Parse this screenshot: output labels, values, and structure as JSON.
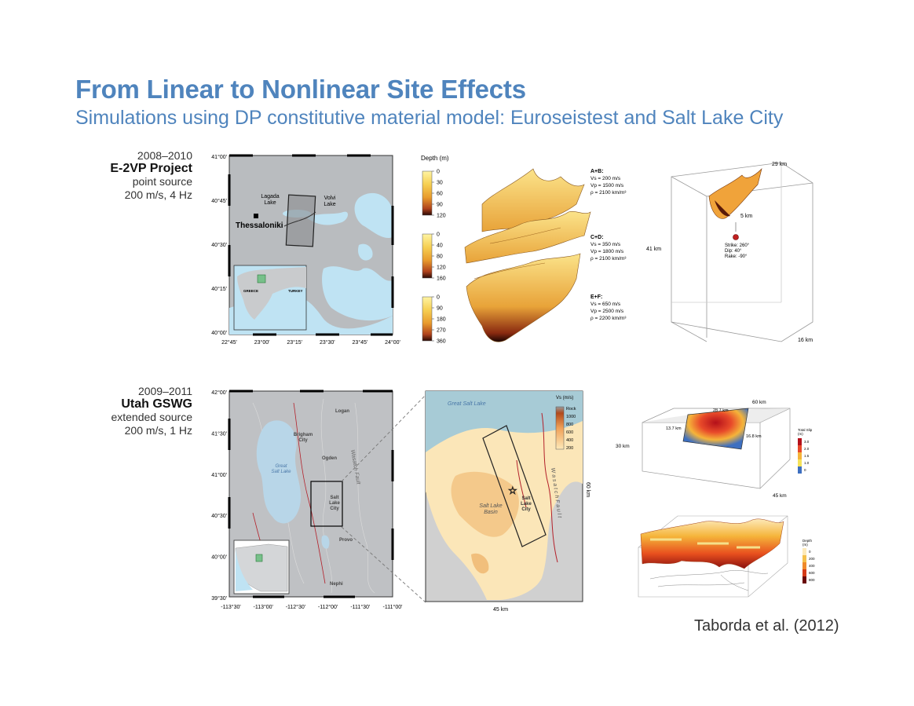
{
  "title": "From Linear to Nonlinear Site Effects",
  "subtitle": "Simulations using DP constitutive material model: Euroseistest and Salt Lake City",
  "rows": [
    {
      "years": "2008–2010",
      "project": "E-2VP Project",
      "source": "point source",
      "params": "200 m/s, 4 Hz"
    },
    {
      "years": "2009–2011",
      "project": "Utah GSWG",
      "source": "extended source",
      "params": "200 m/s, 1 Hz"
    }
  ],
  "greece_map": {
    "lat_ticks": [
      "41°00'",
      "40°45'",
      "40°30'",
      "40°15'",
      "40°00'"
    ],
    "lon_ticks": [
      "22°45'",
      "23°00'",
      "23°15'",
      "23°30'",
      "23°45'",
      "24°00'"
    ],
    "city": "Thessaloniki",
    "lake1": "Lagada\nLake",
    "lake2": "Volvi\nLake",
    "inset_labels": [
      "GREECE",
      "TURKEY"
    ]
  },
  "depth_legend": {
    "title": "Depth (m)",
    "scales": [
      [
        "0",
        "30",
        "60",
        "90",
        "120"
      ],
      [
        "0",
        "40",
        "80",
        "120",
        "160"
      ],
      [
        "0",
        "90",
        "180",
        "270",
        "360"
      ]
    ]
  },
  "layers": [
    {
      "name": "A+B:",
      "vs": "Vs = 200 m/s",
      "vp": "Vp = 1500 m/s",
      "rho": "ρ = 2100 km/m³"
    },
    {
      "name": "C+D:",
      "vs": "Vs = 350 m/s",
      "vp": "Vp = 1800 m/s",
      "rho": "ρ = 2100 km/m³"
    },
    {
      "name": "E+F:",
      "vs": "Vs = 650 m/s",
      "vp": "Vp = 2500 m/s",
      "rho": "ρ = 2200 km/m³"
    }
  ],
  "box1": {
    "top": "29 km",
    "depth": "41 km",
    "side": "16 km",
    "src_depth": "5 km",
    "strike": "Strike: 260°",
    "dip": "Dip:    40°",
    "rake": "Rake:  -90°"
  },
  "utah_map": {
    "lat_ticks": [
      "42°00'",
      "41°30'",
      "41°00'",
      "40°30'",
      "40°00'",
      "39°30'"
    ],
    "lon_ticks": [
      "-113°30'",
      "-113°00'",
      "-112°30'",
      "-112°00'",
      "-111°30'",
      "-111°00'"
    ],
    "places": [
      "Logan",
      "Brigham\nCity",
      "Ogden",
      "Great\nSalt Lake",
      "Salt\nLake\nCity",
      "Provo",
      "Nephi"
    ],
    "fault": "Wasatch Fault"
  },
  "slc_map": {
    "lake": "Great Salt Lake",
    "basin": "Salt Lake\nBasin",
    "city": "Salt\nLake\nCity",
    "fault": "W a s a t c h    F a u l t",
    "legend_title": "Vs (m/s)",
    "legend": [
      "Rock",
      "1000",
      "800",
      "600",
      "400",
      "200"
    ],
    "width": "45 km",
    "height": "60 km"
  },
  "box2": {
    "top": "60 km",
    "inner1": "28.7 km",
    "inner2": "13.7 km",
    "inner3": "16.8 km",
    "depth": "30 km",
    "side": "45 km",
    "legend_title": "Total Slip\n(m)",
    "legend": [
      "3.0",
      "2.0",
      "1.5",
      "1.0",
      "0"
    ]
  },
  "depth3d": {
    "legend_title": "Depth\n(m)",
    "legend": [
      "0",
      "200",
      "400",
      "600",
      "800"
    ]
  },
  "credit": "Taborda et al. (2012)"
}
